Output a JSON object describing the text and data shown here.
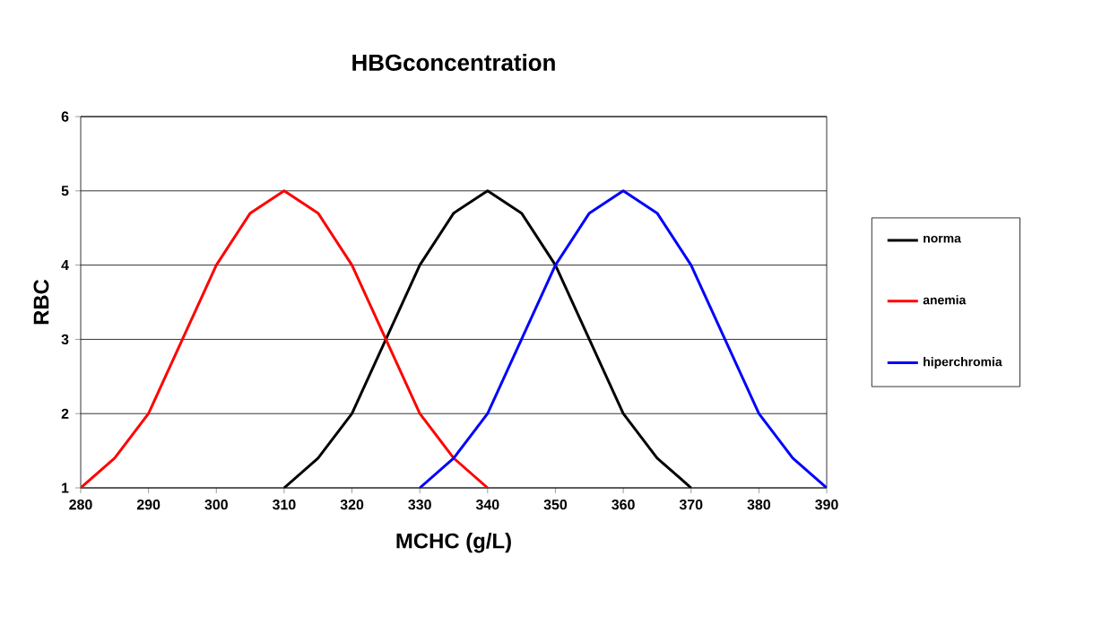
{
  "chart_data": {
    "type": "line",
    "title": "HBGconcentration",
    "xlabel": "MCHC (g/L)",
    "ylabel": "RBC",
    "xlim": [
      280,
      390
    ],
    "xticks": [
      280,
      290,
      300,
      310,
      320,
      330,
      340,
      350,
      360,
      370,
      380,
      390
    ],
    "ylim": [
      1,
      6
    ],
    "yticks": [
      1,
      2,
      3,
      4,
      5,
      6
    ],
    "grid": "y",
    "legend": "right",
    "marker": "none",
    "line_style": "solid",
    "series": [
      {
        "name": "norma",
        "color": "#000000",
        "x": [
          310,
          315,
          320,
          325,
          330,
          335,
          340,
          345,
          350,
          355,
          360,
          365,
          370
        ],
        "values": [
          1,
          1.4,
          2,
          3,
          4,
          4.7,
          5,
          4.7,
          4,
          3,
          2,
          1.4,
          1
        ]
      },
      {
        "name": "anemia",
        "color": "#ff0000",
        "x": [
          280,
          285,
          290,
          295,
          300,
          305,
          310,
          315,
          320,
          325,
          330,
          335,
          340
        ],
        "values": [
          1,
          1.4,
          2,
          3,
          4,
          4.7,
          5,
          4.7,
          4,
          3,
          2,
          1.4,
          1
        ]
      },
      {
        "name": "hiperchromia",
        "color": "#0000ff",
        "x": [
          330,
          335,
          340,
          345,
          350,
          355,
          360,
          365,
          370,
          375,
          380,
          385,
          390
        ],
        "values": [
          1,
          1.4,
          2,
          3,
          4,
          4.7,
          5,
          4.7,
          4,
          3,
          2,
          1.4,
          1
        ]
      }
    ]
  }
}
